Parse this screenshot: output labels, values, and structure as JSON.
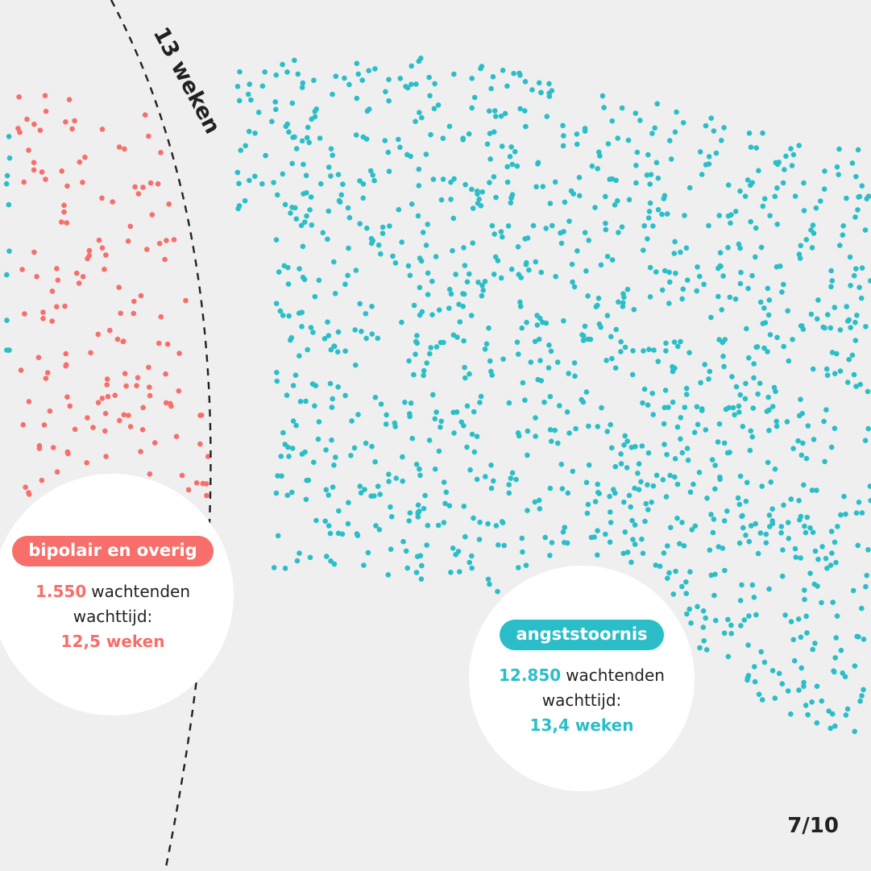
{
  "colors": {
    "background": "#efefef",
    "bipolair": "#f76e6a",
    "angst": "#2bbec8",
    "threshold": "#222222"
  },
  "chart_data": {
    "type": "scatter",
    "description_type": "dot-density (unit chart)",
    "threshold": {
      "label": "13 weken",
      "value_weeks": 13,
      "style": "dashed"
    },
    "groups": [
      {
        "key": "bipolair",
        "label": "bipolair en overig",
        "waiting_count_label": "1.550",
        "waiting_count": 1550,
        "count_suffix": "wachtenden",
        "wait_time_prefix": "wachttijd:",
        "wait_time_label": "12,5 weken",
        "wait_time_weeks": 12.5,
        "color": "#f76e6a"
      },
      {
        "key": "angst",
        "label": "angststoornis",
        "waiting_count_label": "12.850",
        "waiting_count": 12850,
        "count_suffix": "wachtenden",
        "wait_time_prefix": "wachttijd:",
        "wait_time_label": "13,4 weken",
        "wait_time_weeks": 13.4,
        "color": "#2bbec8"
      }
    ]
  },
  "page_indicator": "7/10"
}
